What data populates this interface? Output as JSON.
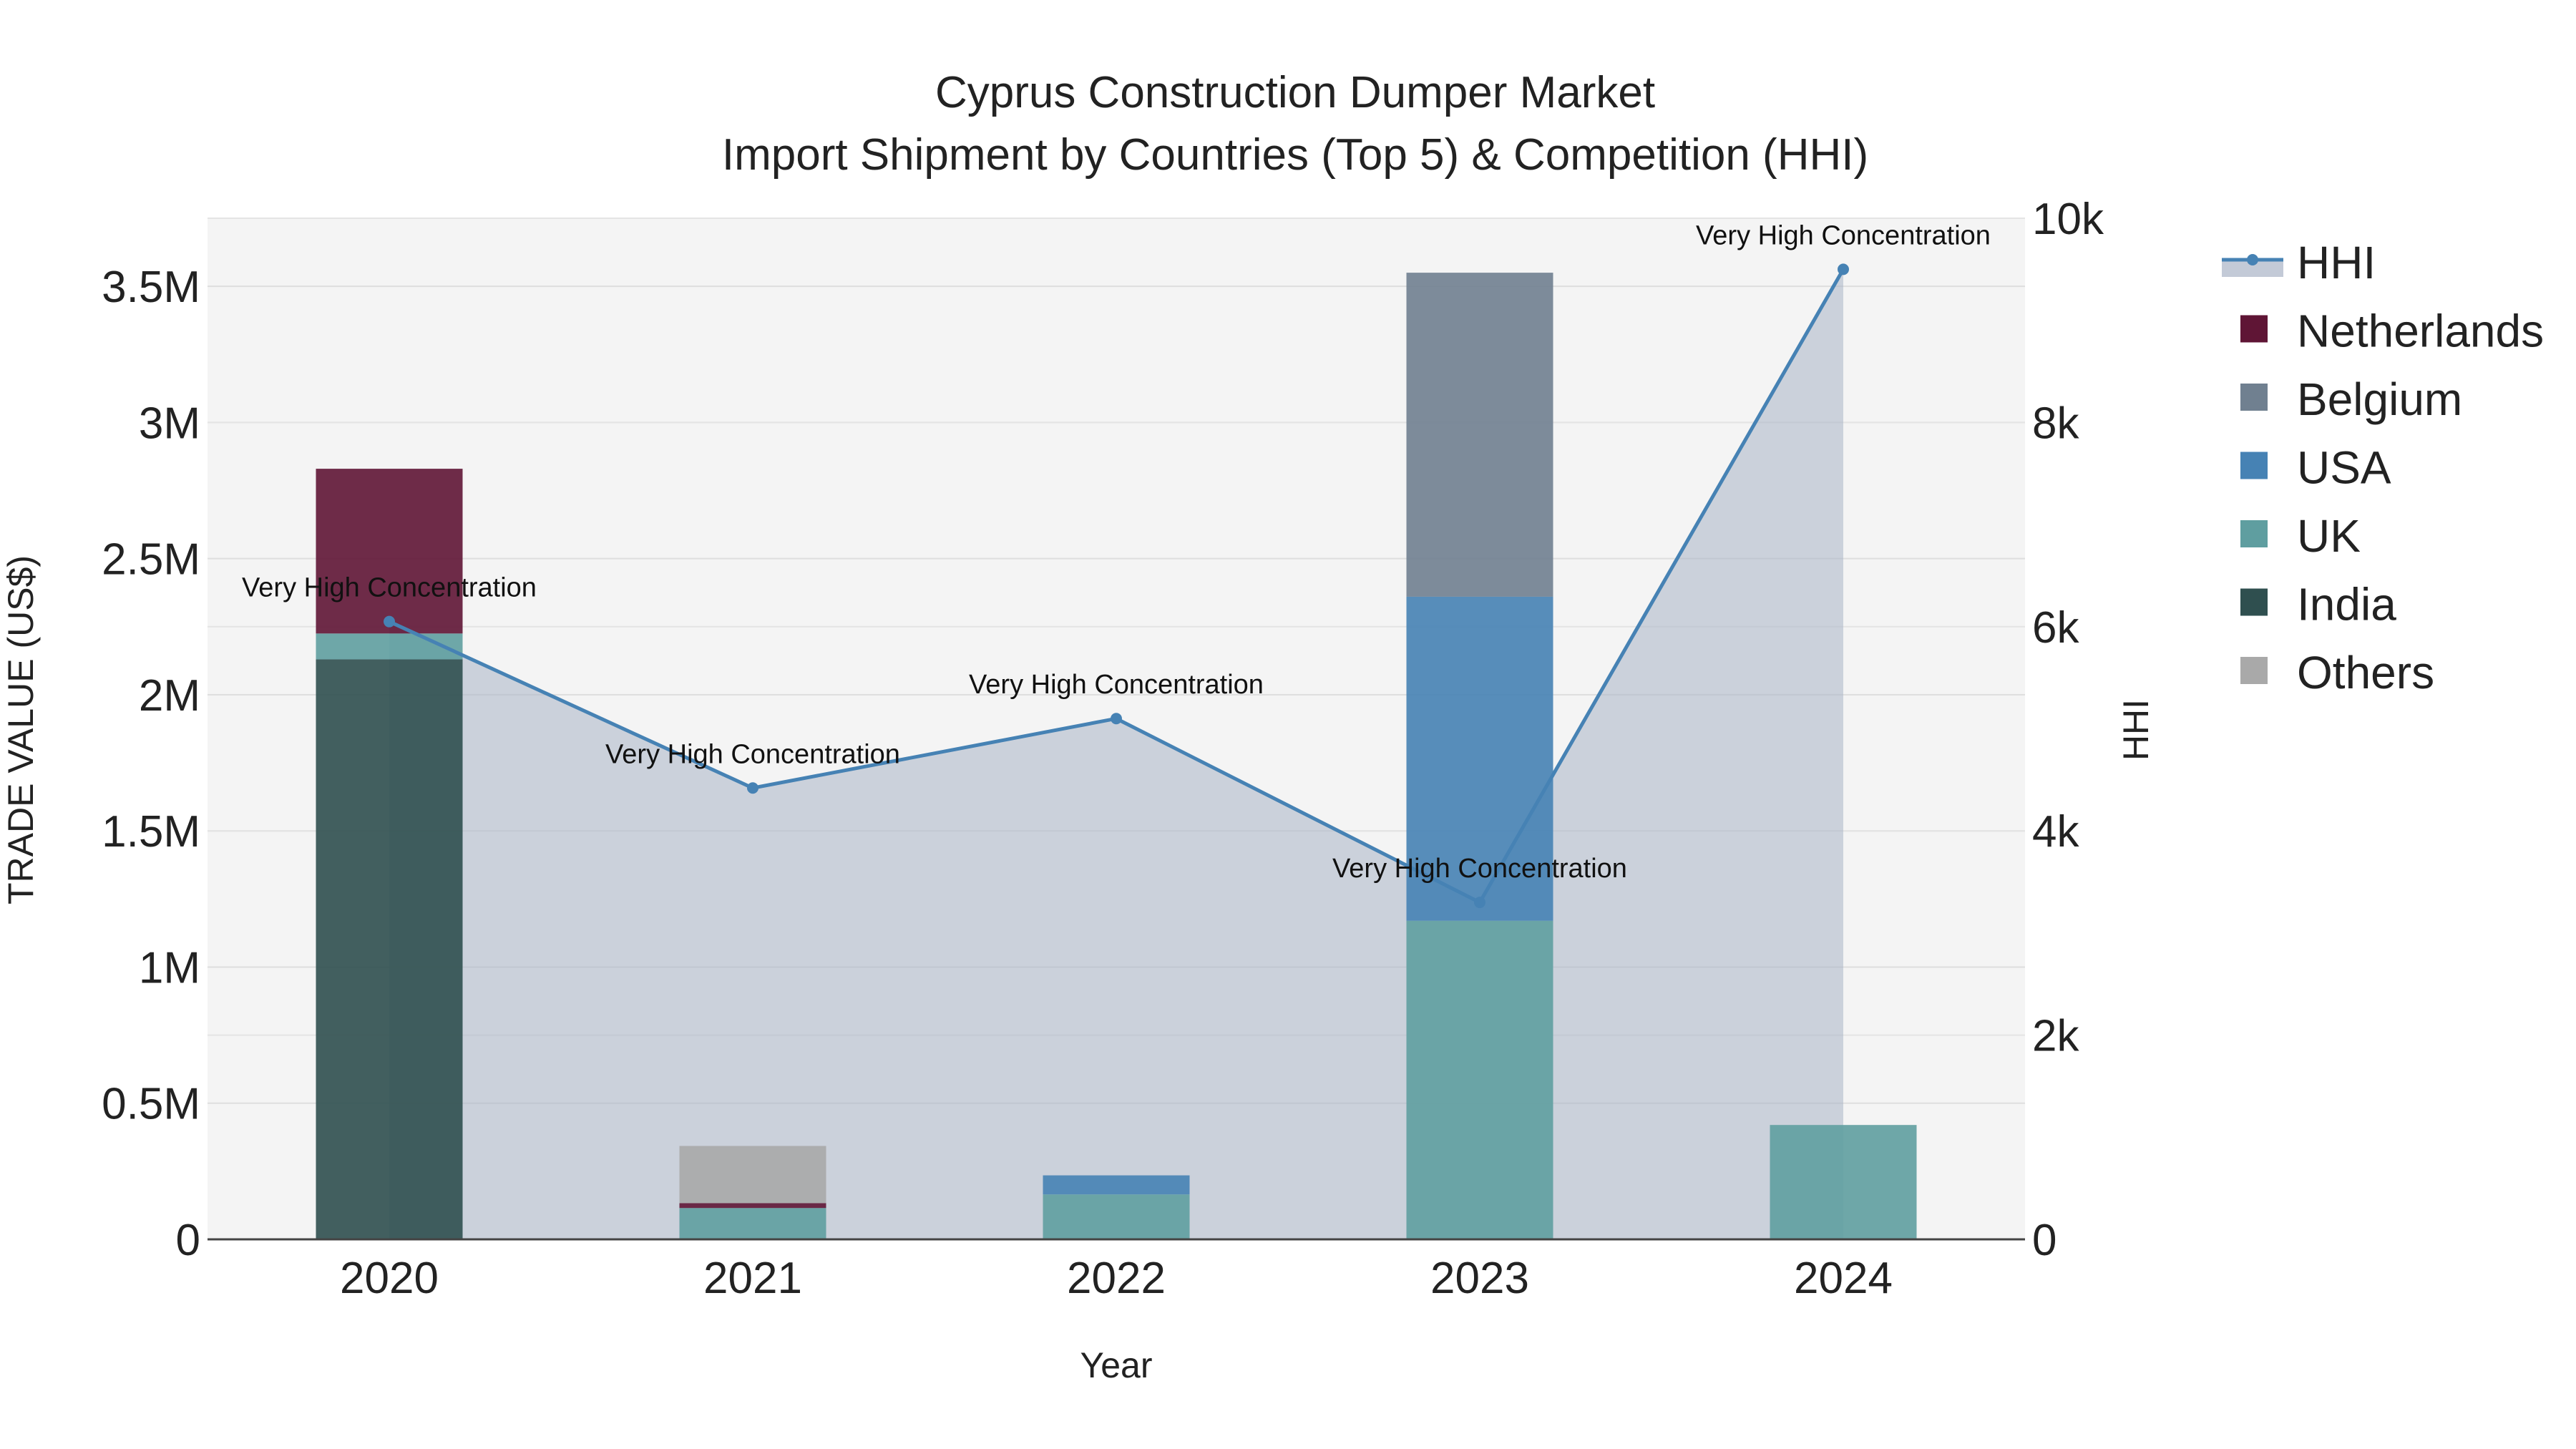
{
  "chart_data": {
    "type": "bar",
    "title_line1": "Cyprus Construction Dumper Market",
    "title_line2": "Import Shipment by Countries (Top 5) & Competition (HHI)",
    "xlabel": "Year",
    "ylabel": "TRADE VALUE (US$)",
    "y2label": "HHI",
    "categories": [
      "2020",
      "2021",
      "2022",
      "2023",
      "2024"
    ],
    "ylim": [
      0,
      3750000
    ],
    "y2lim": [
      0,
      10000
    ],
    "y_ticks": [
      0,
      500000,
      1000000,
      1500000,
      2000000,
      2500000,
      3000000,
      3500000
    ],
    "y_tick_labels": [
      "0",
      "0.5M",
      "1M",
      "1.5M",
      "2M",
      "2.5M",
      "3M",
      "3.5M"
    ],
    "y2_ticks": [
      0,
      2000,
      4000,
      6000,
      8000,
      10000
    ],
    "y2_tick_labels": [
      "0",
      "2k",
      "4k",
      "6k",
      "8k",
      "10k"
    ],
    "series": [
      {
        "name": "India",
        "color": "#2f4f4f",
        "values": [
          2130000,
          0,
          0,
          0,
          0
        ]
      },
      {
        "name": "UK",
        "color": "#5f9ea0",
        "values": [
          95000,
          115000,
          165000,
          1170000,
          420000
        ]
      },
      {
        "name": "USA",
        "color": "#4682b4",
        "values": [
          0,
          0,
          70000,
          1190000,
          0
        ]
      },
      {
        "name": "Belgium",
        "color": "#708090",
        "values": [
          0,
          0,
          0,
          1190000,
          0
        ]
      },
      {
        "name": "Netherlands",
        "color": "#5f1535",
        "values": [
          605000,
          18000,
          0,
          0,
          0
        ]
      },
      {
        "name": "Others",
        "color": "#a9a9a9",
        "values": [
          0,
          210000,
          0,
          0,
          0
        ]
      }
    ],
    "hhi": {
      "name": "HHI",
      "color": "#4682b4",
      "values": [
        6050,
        4420,
        5100,
        3300,
        9500
      ],
      "annotations": [
        "Very High Concentration",
        "Very High Concentration",
        "Very High Concentration",
        "Very High Concentration",
        "Very High Concentration"
      ]
    },
    "legend_order": [
      "HHI",
      "Netherlands",
      "Belgium",
      "USA",
      "UK",
      "India",
      "Others"
    ],
    "legend_position": "right"
  }
}
